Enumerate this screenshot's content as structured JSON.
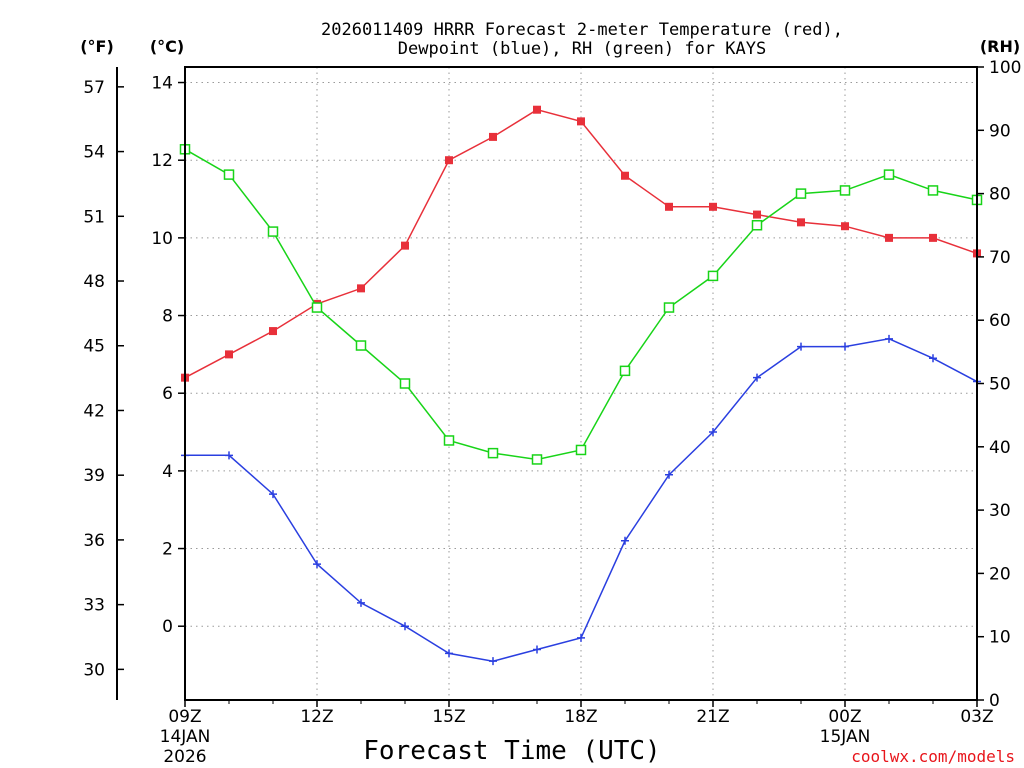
{
  "chart_data": {
    "type": "line",
    "title_line1": "2026011409 HRRR Forecast 2-meter Temperature (red),",
    "title_line2": "Dewpoint (blue), RH (green) for KAYS",
    "xlabel": "Forecast Time (UTC)",
    "credit": "coolwx.com/models",
    "units": {
      "fahrenheit": "(°F)",
      "celsius": "(°C)",
      "rh": "(RH)"
    },
    "x_hours": [
      0,
      1,
      2,
      3,
      4,
      5,
      6,
      7,
      8,
      9,
      10,
      11,
      12,
      13,
      14,
      15,
      16,
      17,
      18
    ],
    "x_ticks": [
      {
        "hour": 0,
        "label": "09Z",
        "sub1": "14JAN",
        "sub2": "2026"
      },
      {
        "hour": 3,
        "label": "12Z",
        "sub1": "",
        "sub2": ""
      },
      {
        "hour": 6,
        "label": "15Z",
        "sub1": "",
        "sub2": ""
      },
      {
        "hour": 9,
        "label": "18Z",
        "sub1": "",
        "sub2": ""
      },
      {
        "hour": 12,
        "label": "21Z",
        "sub1": "",
        "sub2": ""
      },
      {
        "hour": 15,
        "label": "00Z",
        "sub1": "15JAN",
        "sub2": ""
      },
      {
        "hour": 18,
        "label": "03Z",
        "sub1": "",
        "sub2": ""
      }
    ],
    "celsius_ylim": [
      -1.9,
      14.4
    ],
    "celsius_ticks": [
      "0",
      "2",
      "4",
      "6",
      "8",
      "10",
      "12",
      "14"
    ],
    "fahrenheit_ticks": [
      "30",
      "33",
      "36",
      "39",
      "42",
      "45",
      "48",
      "51",
      "54",
      "57"
    ],
    "rh_ylim": [
      0,
      100
    ],
    "rh_ticks": [
      "0",
      "10",
      "20",
      "30",
      "40",
      "50",
      "60",
      "70",
      "80",
      "90",
      "100"
    ],
    "series": [
      {
        "name": "Temperature",
        "color": "#e8303a",
        "marker": "filled-square",
        "axis": "celsius",
        "values": [
          6.4,
          7.0,
          7.6,
          8.3,
          8.7,
          9.8,
          12.0,
          12.6,
          13.3,
          13.0,
          11.6,
          10.8,
          10.8,
          10.6,
          10.4,
          10.3,
          10.0,
          10.0,
          9.6
        ]
      },
      {
        "name": "Dewpoint",
        "color": "#2a3fe0",
        "marker": "plus",
        "axis": "celsius",
        "values": [
          4.4,
          4.4,
          3.4,
          1.6,
          0.6,
          0.0,
          -0.7,
          -0.9,
          -0.6,
          -0.3,
          2.2,
          3.9,
          5.0,
          6.4,
          7.2,
          7.2,
          7.4,
          6.9,
          6.3
        ]
      },
      {
        "name": "RH",
        "color": "#18d418",
        "marker": "open-square",
        "axis": "rh",
        "values": [
          87,
          83,
          74,
          62,
          56,
          50,
          41,
          39,
          38,
          39.5,
          52,
          62,
          67,
          75,
          80,
          80.5,
          83,
          80.5,
          79
        ]
      }
    ]
  }
}
